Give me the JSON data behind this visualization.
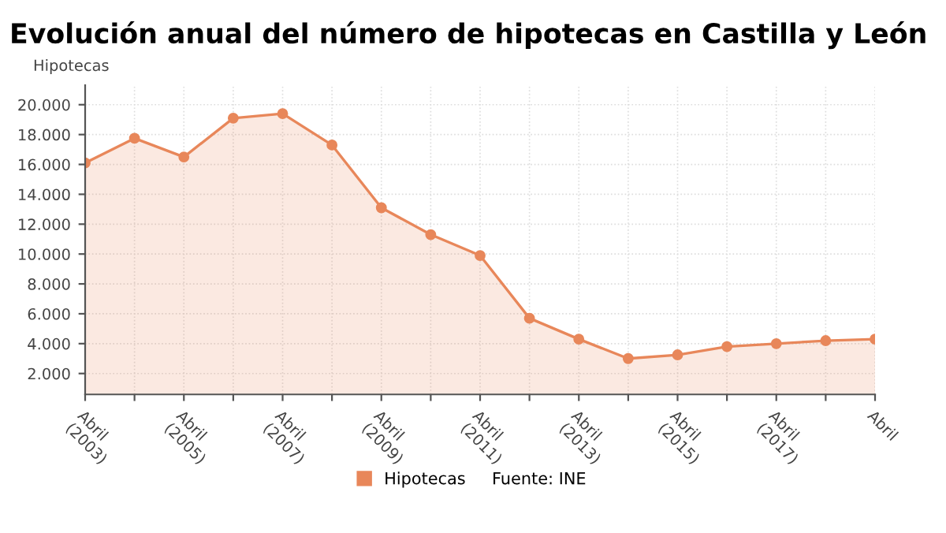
{
  "chart_data": {
    "type": "area",
    "title": "Evolución anual del número de hipotecas en Castilla y León",
    "ylabel": "Hipotecas",
    "categories": [
      "Abril\n(2003)",
      null,
      "Abril\n(2005)",
      null,
      "Abril\n(2007)",
      null,
      "Abril\n(2009)",
      null,
      "Abril\n(2011)",
      null,
      "Abril\n(2013)",
      null,
      "Abril\n(2015)",
      null,
      "Abril\n(2017)",
      null,
      "Abril"
    ],
    "series": [
      {
        "name": "Hipotecas",
        "color": "#e8875a",
        "values": [
          16100,
          17750,
          16500,
          19100,
          19400,
          17300,
          13100,
          11300,
          9900,
          5700,
          4300,
          3000,
          3250,
          3800,
          4000,
          4200,
          4300
        ]
      }
    ],
    "ylim": [
      600,
      21300
    ],
    "yticks": [
      {
        "value": 2000,
        "label": "2.000"
      },
      {
        "value": 4000,
        "label": "4.000"
      },
      {
        "value": 6000,
        "label": "6.000"
      },
      {
        "value": 8000,
        "label": "8.000"
      },
      {
        "value": 10000,
        "label": "10.000"
      },
      {
        "value": 12000,
        "label": "12.000"
      },
      {
        "value": 14000,
        "label": "14.000"
      },
      {
        "value": 16000,
        "label": "16.000"
      },
      {
        "value": 18000,
        "label": "18.000"
      },
      {
        "value": 20000,
        "label": "20.000"
      }
    ],
    "grid": true,
    "marker": "circle",
    "legend": "bottom",
    "annotations": [
      "Fuente: INE"
    ]
  }
}
